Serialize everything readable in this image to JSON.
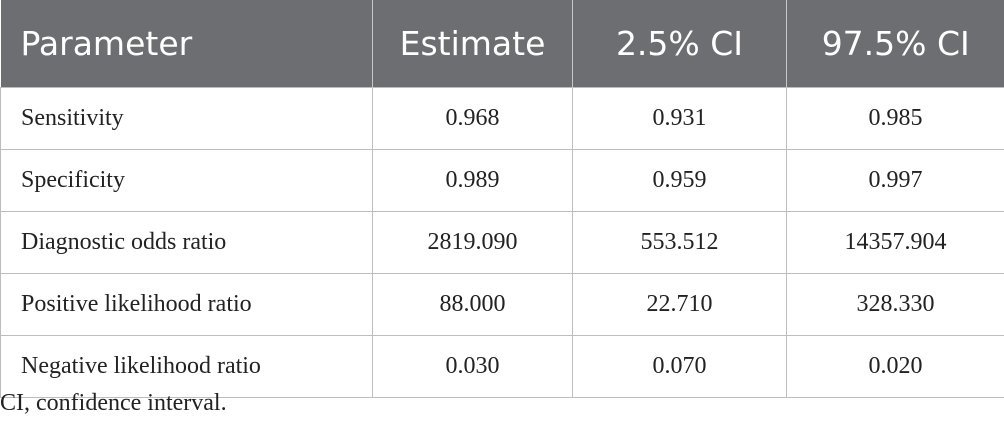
{
  "table": {
    "headers": [
      "Parameter",
      "Estimate",
      "2.5% CI",
      "97.5% CI"
    ],
    "rows": [
      [
        "Sensitivity",
        "0.968",
        "0.931",
        "0.985"
      ],
      [
        "Specificity",
        "0.989",
        "0.959",
        "0.997"
      ],
      [
        "Diagnostic odds ratio",
        "2819.090",
        "553.512",
        "14357.904"
      ],
      [
        "Positive likelihood ratio",
        "88.000",
        "22.710",
        "328.330"
      ],
      [
        "Negative likelihood ratio",
        "0.030",
        "0.070",
        "0.020"
      ]
    ]
  },
  "footnote": "CI, confidence interval."
}
